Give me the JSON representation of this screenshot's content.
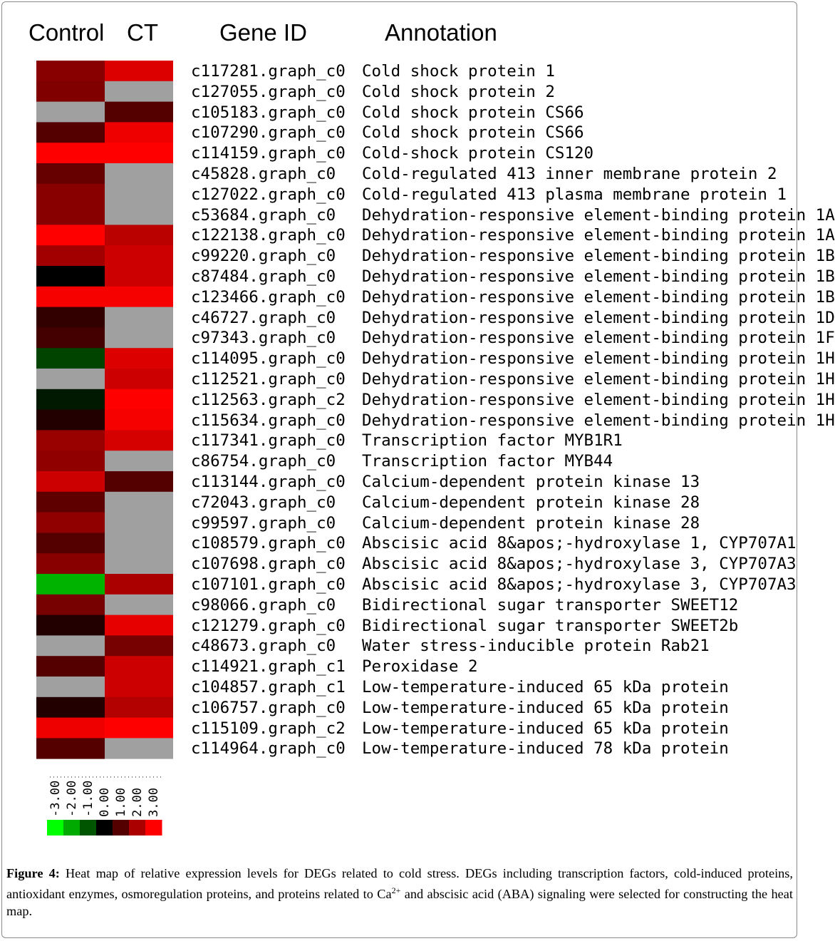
{
  "headers": {
    "control": "Control",
    "ct": "CT",
    "gene_id": "Gene ID",
    "annotation": "Annotation"
  },
  "chart_data": {
    "type": "heatmap",
    "columns": [
      "Control",
      "CT"
    ],
    "color_scale": {
      "min": -3.0,
      "max": 3.0,
      "low_color": "#00ff00",
      "mid_color": "#000000",
      "high_color": "#ff0000",
      "missing_color": "#a0a0a0"
    },
    "rows": [
      {
        "gene_id": "c117281.graph_c0",
        "annotation": "Cold shock protein 1",
        "values": [
          1.6,
          2.6
        ]
      },
      {
        "gene_id": "c127055.graph_c0",
        "annotation": "Cold shock protein 2",
        "values": [
          1.5,
          null
        ]
      },
      {
        "gene_id": "c105183.graph_c0",
        "annotation": "Cold shock protein CS66",
        "values": [
          null,
          1.0
        ]
      },
      {
        "gene_id": "c107290.graph_c0",
        "annotation": "Cold shock protein CS66",
        "values": [
          1.0,
          2.8
        ]
      },
      {
        "gene_id": "c114159.graph_c0",
        "annotation": "Cold-shock protein CS120",
        "values": [
          3.0,
          3.0
        ]
      },
      {
        "gene_id": "c45828.graph_c0",
        "annotation": "Cold-regulated 413 inner membrane protein 2",
        "values": [
          1.2,
          null
        ]
      },
      {
        "gene_id": "c127022.graph_c0",
        "annotation": "Cold-regulated 413 plasma membrane protein 1",
        "values": [
          1.6,
          null
        ]
      },
      {
        "gene_id": "c53684.graph_c0",
        "annotation": "Dehydration-responsive element-binding protein 1A",
        "values": [
          1.6,
          null
        ]
      },
      {
        "gene_id": "c122138.graph_c0",
        "annotation": "Dehydration-responsive element-binding protein 1A",
        "values": [
          3.0,
          2.2
        ]
      },
      {
        "gene_id": "c99220.graph_c0",
        "annotation": "Dehydration-responsive element-binding protein 1B",
        "values": [
          1.9,
          2.4
        ]
      },
      {
        "gene_id": "c87484.graph_c0",
        "annotation": "Dehydration-responsive element-binding protein 1B",
        "values": [
          0.0,
          2.4
        ]
      },
      {
        "gene_id": "c123466.graph_c0",
        "annotation": "Dehydration-responsive element-binding protein 1B",
        "values": [
          2.9,
          2.9
        ]
      },
      {
        "gene_id": "c46727.graph_c0",
        "annotation": "Dehydration-responsive element-binding protein 1D",
        "values": [
          0.6,
          null
        ]
      },
      {
        "gene_id": "c97343.graph_c0",
        "annotation": "Dehydration-responsive element-binding protein 1F",
        "values": [
          0.8,
          null
        ]
      },
      {
        "gene_id": "c114095.graph_c0",
        "annotation": "Dehydration-responsive element-binding protein 1H",
        "values": [
          -0.8,
          2.6
        ]
      },
      {
        "gene_id": "c112521.graph_c0",
        "annotation": "Dehydration-responsive element-binding protein 1H",
        "values": [
          null,
          2.4
        ]
      },
      {
        "gene_id": "c112563.graph_c2",
        "annotation": "Dehydration-responsive element-binding protein 1H",
        "values": [
          -0.3,
          3.0
        ]
      },
      {
        "gene_id": "c115634.graph_c0",
        "annotation": "Dehydration-responsive element-binding protein 1H",
        "values": [
          0.4,
          2.9
        ]
      },
      {
        "gene_id": "c117341.graph_c0",
        "annotation": "Transcription factor MYB1R1",
        "values": [
          1.8,
          2.5
        ]
      },
      {
        "gene_id": "c86754.graph_c0",
        "annotation": "Transcription factor MYB44",
        "values": [
          1.7,
          null
        ]
      },
      {
        "gene_id": "c113144.graph_c0",
        "annotation": "Calcium-dependent protein kinase 13",
        "values": [
          2.4,
          1.0
        ]
      },
      {
        "gene_id": "c72043.graph_c0",
        "annotation": "Calcium-dependent protein kinase 28",
        "values": [
          1.1,
          null
        ]
      },
      {
        "gene_id": "c99597.graph_c0",
        "annotation": "Calcium-dependent protein kinase 28",
        "values": [
          1.7,
          null
        ]
      },
      {
        "gene_id": "c108579.graph_c0",
        "annotation": "Abscisic acid 8&apos;-hydroxylase 1, CYP707A1",
        "values": [
          1.0,
          null
        ]
      },
      {
        "gene_id": "c107698.graph_c0",
        "annotation": "Abscisic acid 8&apos;-hydroxylase 3, CYP707A3",
        "values": [
          1.6,
          null
        ]
      },
      {
        "gene_id": "c107101.graph_c0",
        "annotation": "Abscisic acid 8&apos;-hydroxylase 3, CYP707A3",
        "values": [
          -2.1,
          2.0
        ]
      },
      {
        "gene_id": "c98066.graph_c0",
        "annotation": "Bidirectional sugar transporter SWEET12",
        "values": [
          1.4,
          null
        ]
      },
      {
        "gene_id": "c121279.graph_c0",
        "annotation": "Bidirectional sugar transporter SWEET2b",
        "values": [
          0.4,
          2.7
        ]
      },
      {
        "gene_id": "c48673.graph_c0",
        "annotation": "Water stress-inducible protein Rab21",
        "values": [
          null,
          1.4
        ]
      },
      {
        "gene_id": "c114921.graph_c1",
        "annotation": "Peroxidase 2",
        "values": [
          1.0,
          2.4
        ]
      },
      {
        "gene_id": "c104857.graph_c1",
        "annotation": "Low-temperature-induced 65 kDa protein",
        "values": [
          null,
          2.4
        ]
      },
      {
        "gene_id": "c106757.graph_c0",
        "annotation": "Low-temperature-induced 65 kDa protein",
        "values": [
          0.4,
          2.1
        ]
      },
      {
        "gene_id": "c115109.graph_c2",
        "annotation": "Low-temperature-induced 65 kDa protein",
        "values": [
          2.8,
          3.0
        ]
      },
      {
        "gene_id": "c114964.graph_c0",
        "annotation": "Low-temperature-induced 78 kDa protein",
        "values": [
          1.0,
          null
        ]
      }
    ],
    "legend": {
      "tick_labels": [
        "-3.00",
        "-2.00",
        "-1.00",
        "0.00",
        "1.00",
        "2.00",
        "3.00"
      ],
      "swatch_values": [
        -3,
        -2,
        -1,
        0,
        1,
        2,
        3
      ]
    }
  },
  "caption": {
    "label": "Figure 4:",
    "text_1": " Heat map of relative expression levels for DEGs related to cold stress. DEGs including transcription factors, cold-induced proteins, antioxidant enzymes, osmoregulation proteins, and proteins related to Ca",
    "superscript": "2+",
    "text_2": " and abscisic acid (ABA) signaling were selected for constructing the heat map."
  }
}
